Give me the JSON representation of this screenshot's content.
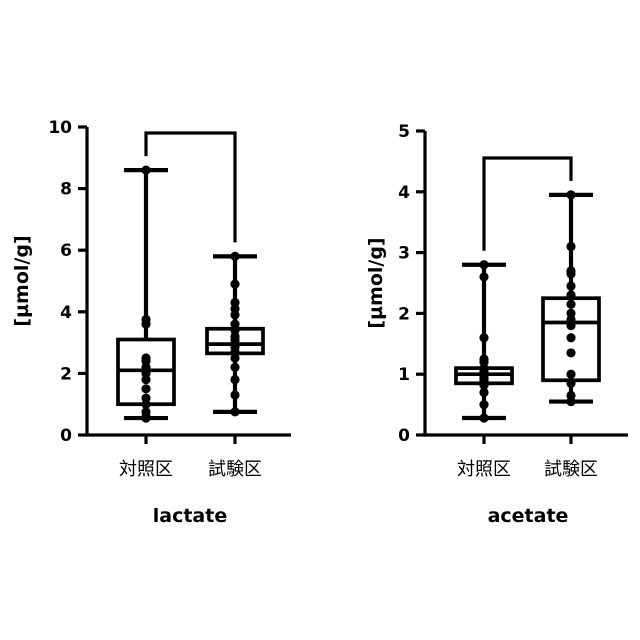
{
  "chart_data": [
    {
      "type": "box",
      "xlabel": "lactate",
      "ylabel": "[µmol/g]",
      "ylim": [
        0,
        10
      ],
      "yticks": [
        0,
        2,
        4,
        6,
        8,
        10
      ],
      "categories": [
        "対照区",
        "試験区"
      ],
      "significance_bracket": [
        "対照区",
        "試験区"
      ],
      "series": [
        {
          "category": "対照区",
          "min": 0.55,
          "q1": 1.0,
          "median": 2.1,
          "q3": 3.1,
          "max": 8.6,
          "points": [
            0.55,
            0.6,
            0.75,
            1.0,
            1.2,
            1.5,
            1.8,
            2.0,
            2.2,
            2.4,
            2.5,
            3.6,
            3.75,
            8.6
          ]
        },
        {
          "category": "試験区",
          "min": 0.75,
          "q1": 2.65,
          "median": 2.95,
          "q3": 3.45,
          "max": 5.8,
          "points": [
            0.75,
            1.3,
            1.8,
            2.2,
            2.5,
            2.7,
            2.85,
            3.0,
            3.1,
            3.2,
            3.4,
            3.6,
            3.9,
            4.1,
            4.3,
            4.9,
            5.8
          ]
        }
      ]
    },
    {
      "type": "box",
      "xlabel": "acetate",
      "ylabel": "[µmol/g]",
      "ylim": [
        0,
        5
      ],
      "yticks": [
        0,
        1,
        2,
        3,
        4,
        5
      ],
      "categories": [
        "対照区",
        "試験区"
      ],
      "significance_bracket": [
        "対照区",
        "試験区"
      ],
      "series": [
        {
          "category": "対照区",
          "min": 0.28,
          "q1": 0.85,
          "median": 1.0,
          "q3": 1.1,
          "max": 2.8,
          "points": [
            0.28,
            0.5,
            0.7,
            0.82,
            0.9,
            0.95,
            1.0,
            1.05,
            1.1,
            1.2,
            1.25,
            1.6,
            2.6,
            2.8
          ]
        },
        {
          "category": "試験区",
          "min": 0.55,
          "q1": 0.9,
          "median": 1.85,
          "q3": 2.25,
          "max": 3.95,
          "points": [
            0.55,
            0.65,
            0.85,
            1.0,
            1.35,
            1.6,
            1.8,
            1.9,
            2.0,
            2.15,
            2.3,
            2.45,
            2.65,
            2.7,
            3.1,
            3.95
          ]
        }
      ]
    }
  ]
}
